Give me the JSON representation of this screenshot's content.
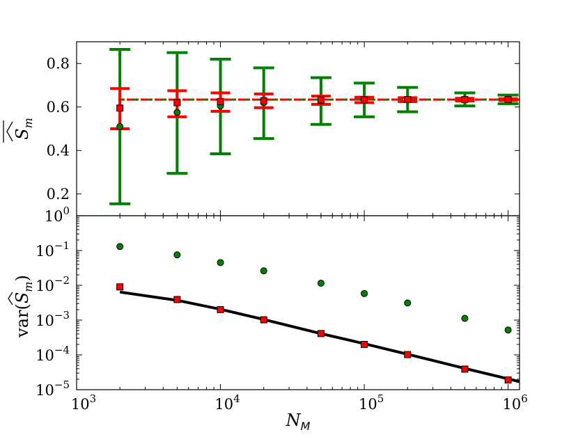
{
  "chart_data": [
    {
      "type": "scatter",
      "panel": "top",
      "ylabel": "\\widehat{\\overline{S}}_m",
      "ylabel_text": "S_m",
      "xscale": "log",
      "xlim": [
        1000,
        1200000
      ],
      "ylim": [
        0.1,
        0.9
      ],
      "yticks": [
        0.2,
        0.4,
        0.6,
        0.8
      ],
      "ytick_labels": [
        "0.2",
        "0.4",
        "0.6",
        "0.8"
      ],
      "reference_line": {
        "value": 0.634,
        "colors": [
          "#008000",
          "#ff0000"
        ],
        "style": "dash-dot"
      },
      "x": [
        2000,
        5000,
        10000,
        20000,
        50000,
        100000,
        200000,
        500000,
        1000000
      ],
      "series": [
        {
          "name": "green circles",
          "marker": "circle",
          "color": "#008000",
          "values": [
            0.51,
            0.575,
            0.605,
            0.62,
            0.63,
            0.632,
            0.634,
            0.634,
            0.635
          ],
          "err_low": [
            0.155,
            0.295,
            0.385,
            0.455,
            0.52,
            0.555,
            0.578,
            0.605,
            0.615
          ],
          "err_high": [
            0.865,
            0.85,
            0.82,
            0.78,
            0.735,
            0.71,
            0.69,
            0.665,
            0.655
          ]
        },
        {
          "name": "red squares",
          "marker": "square",
          "color": "#ff0000",
          "values": [
            0.595,
            0.62,
            0.625,
            0.628,
            0.632,
            0.633,
            0.634,
            0.634,
            0.634
          ],
          "err_low": [
            0.5,
            0.555,
            0.58,
            0.597,
            0.612,
            0.62,
            0.625,
            0.628,
            0.63
          ],
          "err_high": [
            0.685,
            0.675,
            0.665,
            0.66,
            0.65,
            0.645,
            0.643,
            0.64,
            0.638
          ]
        }
      ]
    },
    {
      "type": "scatter",
      "panel": "bottom",
      "ylabel": "var(\\widehat{S}_m)",
      "ylabel_text": "var(S_m)",
      "xlabel": "N_M",
      "xlabel_text": "N",
      "xlabel_sub": "M",
      "xscale": "log",
      "yscale": "log",
      "xlim": [
        1000,
        1200000
      ],
      "ylim": [
        1e-05,
        1
      ],
      "xticks": [
        1000,
        10000,
        100000,
        1000000
      ],
      "xtick_bases": [
        "10",
        "10",
        "10",
        "10"
      ],
      "xtick_exps": [
        "3",
        "4",
        "5",
        "6"
      ],
      "yticks": [
        1e-05,
        0.0001,
        0.001,
        0.01,
        0.1,
        1
      ],
      "ytick_bases": [
        "10",
        "10",
        "10",
        "10",
        "10",
        "10"
      ],
      "ytick_exps": [
        "−5",
        "−4",
        "−3",
        "−2",
        "−1",
        "0"
      ],
      "x": [
        2000,
        5000,
        10000,
        20000,
        50000,
        100000,
        200000,
        500000,
        1000000
      ],
      "series": [
        {
          "name": "green circles",
          "marker": "circle",
          "color": "#008000",
          "values": [
            0.13,
            0.075,
            0.045,
            0.026,
            0.0115,
            0.0058,
            0.0031,
            0.00112,
            0.00052
          ]
        },
        {
          "name": "red squares",
          "marker": "square",
          "color": "#ff0000",
          "values": [
            0.009,
            0.0039,
            0.002,
            0.00102,
            0.00041,
            0.0002,
            0.000102,
            3.9e-05,
            1.9e-05
          ]
        },
        {
          "name": "theory line",
          "marker": "line",
          "color": "#000000",
          "x": [
            2000,
            5000,
            10000,
            20000,
            50000,
            100000,
            200000,
            500000,
            1000000,
            1200000
          ],
          "values": [
            0.0064,
            0.0037,
            0.00205,
            0.00104,
            0.00041,
            0.00021,
            0.000104,
            4.1e-05,
            2.05e-05,
            1.7e-05
          ]
        }
      ]
    }
  ]
}
